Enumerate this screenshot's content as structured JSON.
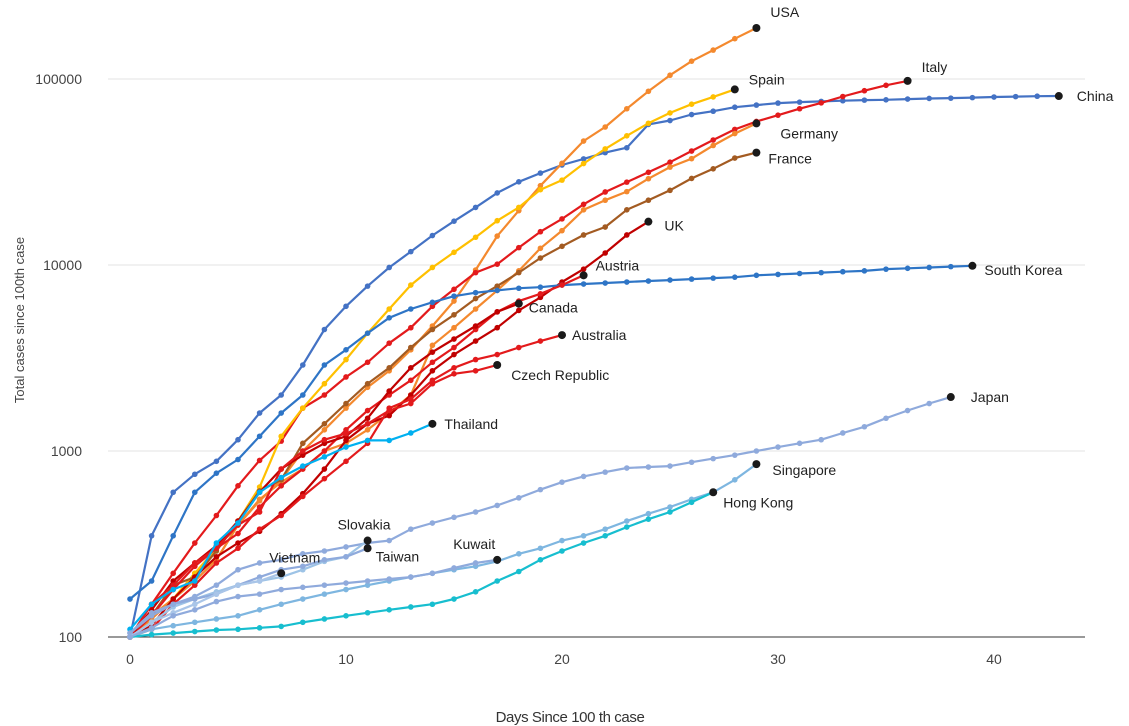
{
  "chart_data": {
    "type": "line",
    "xlabel": "Days Since 100 th case",
    "ylabel": "Total cases since 100th case",
    "xlim": [
      -1,
      44
    ],
    "ylim": [
      100,
      200000
    ],
    "yscale": "log",
    "xticks": [
      0,
      10,
      20,
      30,
      40
    ],
    "yticks": [
      100,
      1000,
      10000,
      100000
    ],
    "grid": true,
    "legend": "none (series labelled at line ends)",
    "series": [
      {
        "name": "China",
        "color": "#4472c4",
        "label_size": 17,
        "label_dx": 18,
        "label_dy": 0,
        "x": [
          0,
          1,
          2,
          3,
          4,
          5,
          6,
          7,
          8,
          9,
          10,
          11,
          12,
          13,
          14,
          15,
          16,
          17,
          18,
          19,
          20,
          21,
          22,
          23,
          24,
          25,
          26,
          27,
          28,
          29,
          30,
          31,
          32,
          33,
          34,
          35,
          36,
          37,
          38,
          39,
          40,
          41,
          42,
          43
        ],
        "y": [
          100,
          350,
          600,
          750,
          880,
          1150,
          1600,
          2000,
          2900,
          4500,
          6000,
          7700,
          9700,
          11800,
          14400,
          17200,
          20400,
          24400,
          28000,
          31200,
          34500,
          37200,
          40200,
          42700,
          57000,
          59800,
          64400,
          67100,
          70500,
          72400,
          74200,
          75100,
          75800,
          76400,
          77000,
          77300,
          78000,
          78600,
          78900,
          79400,
          80000,
          80400,
          80800,
          81000
        ]
      },
      {
        "name": "USA",
        "color": "#f4892e",
        "label_size": 14,
        "label_dx": 14,
        "label_dy": -16,
        "x": [
          0,
          1,
          2,
          3,
          4,
          5,
          6,
          7,
          8,
          9,
          10,
          11,
          12,
          13,
          14,
          15,
          16,
          17,
          18,
          19,
          20,
          21,
          22,
          23,
          24,
          25,
          26,
          27,
          28,
          29
        ],
        "y": [
          100,
          125,
          160,
          220,
          260,
          400,
          540,
          700,
          1000,
          1300,
          1700,
          2200,
          2700,
          3500,
          4700,
          6400,
          9400,
          14300,
          19600,
          26700,
          35200,
          46400,
          55200,
          69200,
          85900,
          104800,
          124700,
          143000,
          164700,
          188000
        ]
      },
      {
        "name": "Italy",
        "color": "#e31a1c",
        "label_size": 14,
        "label_dx": 14,
        "label_dy": -14,
        "x": [
          0,
          1,
          2,
          3,
          4,
          5,
          6,
          7,
          8,
          9,
          10,
          11,
          12,
          13,
          14,
          15,
          16,
          17,
          18,
          19,
          20,
          21,
          22,
          23,
          24,
          25,
          26,
          27,
          28,
          29,
          30,
          31,
          32,
          33,
          34,
          35,
          36
        ],
        "y": [
          100,
          150,
          220,
          320,
          450,
          650,
          890,
          1130,
          1700,
          2000,
          2500,
          3000,
          3800,
          4600,
          6000,
          7400,
          9100,
          10100,
          12400,
          15100,
          17700,
          21200,
          24700,
          27900,
          31500,
          35700,
          41000,
          47000,
          53600,
          59100,
          63900,
          69200,
          74400,
          80500,
          86500,
          92500,
          97700
        ]
      },
      {
        "name": "Spain",
        "color": "#ffc000",
        "label_size": 14,
        "label_dx": 14,
        "label_dy": -10,
        "x": [
          0,
          1,
          2,
          3,
          4,
          5,
          6,
          7,
          8,
          9,
          10,
          11,
          12,
          13,
          14,
          15,
          16,
          17,
          18,
          19,
          20,
          21,
          22,
          23,
          24,
          25,
          26,
          27,
          28
        ],
        "y": [
          100,
          130,
          160,
          220,
          300,
          420,
          640,
          1200,
          1700,
          2300,
          3100,
          4300,
          5800,
          7800,
          9700,
          11700,
          14100,
          17300,
          20400,
          25400,
          28600,
          35100,
          42100,
          49500,
          57800,
          65700,
          73200,
          80100,
          87900
        ]
      },
      {
        "name": "Germany",
        "color": "#f4892e",
        "label_size": 14,
        "label_dx": 24,
        "label_dy": 10,
        "x": [
          0,
          1,
          2,
          3,
          4,
          5,
          6,
          7,
          8,
          9,
          10,
          11,
          12,
          13,
          14,
          15,
          16,
          17,
          18,
          19,
          20,
          21,
          22,
          23,
          24,
          25,
          26,
          27,
          28,
          29
        ],
        "y": [
          100,
          130,
          160,
          200,
          260,
          400,
          550,
          680,
          800,
          1000,
          1100,
          1300,
          1600,
          2000,
          3700,
          4600,
          5800,
          7300,
          9300,
          12300,
          15300,
          19800,
          22300,
          24800,
          29100,
          33600,
          37300,
          43900,
          50900,
          57700
        ]
      },
      {
        "name": "France",
        "color": "#a35b22",
        "label_size": 14,
        "label_dx": 12,
        "label_dy": 6,
        "x": [
          0,
          1,
          2,
          3,
          4,
          5,
          6,
          7,
          8,
          9,
          10,
          11,
          12,
          13,
          14,
          15,
          16,
          17,
          18,
          19,
          20,
          21,
          22,
          23,
          24,
          25,
          26,
          27,
          28,
          29
        ],
        "y": [
          100,
          130,
          190,
          210,
          290,
          420,
          610,
          700,
          1100,
          1400,
          1800,
          2300,
          2800,
          3600,
          4500,
          5400,
          6600,
          7700,
          9100,
          10900,
          12600,
          14500,
          16000,
          19800,
          22300,
          25200,
          29200,
          32900,
          37600,
          40200
        ]
      },
      {
        "name": "UK",
        "color": "#c00000",
        "label_size": 14,
        "label_dx": 16,
        "label_dy": 4,
        "x": [
          0,
          1,
          2,
          3,
          4,
          5,
          6,
          7,
          8,
          9,
          10,
          11,
          12,
          13,
          14,
          15,
          16,
          17,
          18,
          19,
          20,
          21,
          22,
          23,
          24
        ],
        "y": [
          100,
          115,
          160,
          210,
          270,
          320,
          370,
          460,
          590,
          800,
          1140,
          1400,
          1550,
          2000,
          2700,
          3300,
          3900,
          4600,
          5700,
          6700,
          8100,
          9500,
          11600,
          14500,
          17100
        ]
      },
      {
        "name": "South Korea",
        "color": "#2e75c6",
        "label_size": 14,
        "label_dx": 12,
        "label_dy": 4,
        "x": [
          0,
          1,
          2,
          3,
          4,
          5,
          6,
          7,
          8,
          9,
          10,
          11,
          12,
          13,
          14,
          15,
          16,
          17,
          18,
          19,
          20,
          21,
          22,
          23,
          24,
          25,
          26,
          27,
          28,
          29,
          30,
          31,
          32,
          33,
          34,
          35,
          36,
          37,
          38,
          39
        ],
        "y": [
          160,
          200,
          350,
          600,
          760,
          900,
          1200,
          1600,
          2000,
          2900,
          3500,
          4300,
          5200,
          5800,
          6300,
          6800,
          7100,
          7300,
          7500,
          7600,
          7800,
          7900,
          8000,
          8100,
          8200,
          8300,
          8400,
          8500,
          8600,
          8800,
          8900,
          9000,
          9100,
          9200,
          9300,
          9500,
          9600,
          9700,
          9800,
          9900
        ]
      },
      {
        "name": "Austria",
        "color": "#e31a1c",
        "label_size": 14,
        "label_dx": 12,
        "label_dy": -10,
        "x": [
          0,
          1,
          2,
          3,
          4,
          5,
          6,
          7,
          8,
          9,
          10,
          11,
          12,
          13,
          14,
          15,
          16,
          17,
          18,
          19,
          20,
          21
        ],
        "y": [
          100,
          130,
          180,
          240,
          300,
          360,
          500,
          650,
          800,
          1000,
          1300,
          1650,
          2000,
          2400,
          3000,
          3600,
          4500,
          5600,
          6400,
          7000,
          7800,
          8800
        ]
      },
      {
        "name": "Canada",
        "color": "#c00000",
        "label_size": 14,
        "label_dx": 10,
        "label_dy": 4,
        "x": [
          0,
          1,
          2,
          3,
          4,
          5,
          6,
          7,
          8,
          9,
          10,
          11,
          12,
          13,
          14,
          15,
          16,
          17,
          18
        ],
        "y": [
          100,
          140,
          200,
          250,
          310,
          420,
          600,
          800,
          950,
          1100,
          1200,
          1500,
          2100,
          2800,
          3400,
          4000,
          4700,
          5600,
          6200
        ]
      },
      {
        "name": "Australia",
        "color": "#e31a1c",
        "label_size": 14,
        "label_dx": 10,
        "label_dy": 0,
        "x": [
          0,
          1,
          2,
          3,
          4,
          5,
          6,
          7,
          8,
          9,
          10,
          11,
          12,
          13,
          14,
          15,
          16,
          17,
          18,
          19,
          20
        ],
        "y": [
          100,
          110,
          150,
          190,
          250,
          300,
          380,
          450,
          570,
          710,
          880,
          1100,
          1700,
          1900,
          2400,
          2800,
          3100,
          3300,
          3600,
          3900,
          4200
        ]
      },
      {
        "name": "Czech Republic",
        "color": "#e31a1c",
        "label_size": 14,
        "label_dx": 14,
        "label_dy": 10,
        "x": [
          0,
          1,
          2,
          3,
          4,
          5,
          6,
          7,
          8,
          9,
          10,
          11,
          12,
          13,
          14,
          15,
          16,
          17
        ],
        "y": [
          100,
          150,
          190,
          250,
          300,
          400,
          470,
          800,
          1000,
          1150,
          1240,
          1400,
          1650,
          1800,
          2300,
          2600,
          2700,
          2900
        ]
      },
      {
        "name": "Thailand",
        "color": "#00b0f0",
        "label_size": 14,
        "label_dx": 12,
        "label_dy": 0,
        "x": [
          0,
          1,
          2,
          3,
          4,
          5,
          6,
          7,
          8,
          9,
          10,
          11,
          12,
          13,
          14
        ],
        "y": [
          110,
          150,
          180,
          200,
          320,
          410,
          600,
          720,
          830,
          930,
          1050,
          1140,
          1140,
          1250,
          1400
        ]
      },
      {
        "name": "Japan",
        "color": "#8faadc",
        "label_size": 14,
        "label_dx": 20,
        "label_dy": 0,
        "x": [
          0,
          1,
          2,
          3,
          4,
          5,
          6,
          7,
          8,
          9,
          10,
          11,
          12,
          13,
          14,
          15,
          16,
          17,
          18,
          19,
          20,
          21,
          22,
          23,
          24,
          25,
          26,
          27,
          28,
          29,
          30,
          31,
          32,
          33,
          34,
          35,
          36,
          37,
          38
        ],
        "y": [
          105,
          135,
          150,
          165,
          190,
          230,
          250,
          260,
          280,
          290,
          305,
          320,
          330,
          380,
          410,
          440,
          470,
          510,
          560,
          620,
          680,
          730,
          770,
          810,
          820,
          830,
          870,
          910,
          950,
          1000,
          1050,
          1100,
          1150,
          1250,
          1350,
          1500,
          1650,
          1800,
          1950
        ]
      },
      {
        "name": "Singapore",
        "color": "#7eb6e0",
        "label_size": 14,
        "label_dx": 16,
        "label_dy": 6,
        "x": [
          0,
          1,
          2,
          3,
          4,
          5,
          6,
          7,
          8,
          9,
          10,
          11,
          12,
          13,
          14,
          15,
          16,
          17,
          18,
          19,
          20,
          21,
          22,
          23,
          24,
          25,
          26,
          27,
          28,
          29
        ],
        "y": [
          100,
          110,
          115,
          120,
          125,
          130,
          140,
          150,
          160,
          170,
          180,
          190,
          200,
          210,
          220,
          230,
          240,
          255,
          280,
          300,
          330,
          350,
          380,
          420,
          460,
          500,
          550,
          600,
          700,
          850
        ]
      },
      {
        "name": "Hong Kong",
        "color": "#17becf",
        "label_size": 14,
        "label_dx": 10,
        "label_dy": 10,
        "x": [
          0,
          1,
          2,
          3,
          4,
          5,
          6,
          7,
          8,
          9,
          10,
          11,
          12,
          13,
          14,
          15,
          16,
          17,
          18,
          19,
          20,
          21,
          22,
          23,
          24,
          25,
          26,
          27
        ],
        "y": [
          100,
          103,
          105,
          107,
          109,
          110,
          112,
          114,
          120,
          125,
          130,
          135,
          140,
          145,
          150,
          160,
          175,
          200,
          225,
          260,
          290,
          320,
          350,
          390,
          430,
          470,
          530,
          600
        ]
      },
      {
        "name": "Slovakia",
        "color": "#9dc3e6",
        "label_size": 14,
        "label_dx": -30,
        "label_dy": -16,
        "x": [
          0,
          1,
          2,
          3,
          4,
          5,
          6,
          7,
          8,
          9,
          10,
          11
        ],
        "y": [
          100,
          120,
          145,
          160,
          175,
          190,
          200,
          210,
          230,
          255,
          270,
          330
        ]
      },
      {
        "name": "Taiwan",
        "color": "#8faadc",
        "label_size": 14,
        "label_dx": 8,
        "label_dy": 8,
        "x": [
          0,
          1,
          2,
          3,
          4,
          5,
          6,
          7,
          8,
          9,
          10,
          11
        ],
        "y": [
          105,
          130,
          150,
          160,
          170,
          190,
          210,
          230,
          240,
          260,
          270,
          300
        ]
      },
      {
        "name": "Vietnam",
        "color": "#a9c5e8",
        "label_size": 14,
        "label_dx": -12,
        "label_dy": -16,
        "x": [
          0,
          1,
          2,
          3,
          4,
          5,
          6,
          7
        ],
        "y": [
          100,
          120,
          135,
          150,
          170,
          190,
          200,
          220
        ]
      },
      {
        "name": "Kuwait",
        "color": "#8faadc",
        "label_size": 14,
        "label_dx": -44,
        "label_dy": -16,
        "x": [
          0,
          1,
          2,
          3,
          4,
          5,
          6,
          7,
          8,
          9,
          10,
          11,
          12,
          13,
          14,
          15,
          16,
          17
        ],
        "y": [
          100,
          112,
          130,
          140,
          155,
          165,
          170,
          180,
          185,
          190,
          195,
          200,
          205,
          210,
          220,
          235,
          250,
          260
        ]
      }
    ]
  }
}
